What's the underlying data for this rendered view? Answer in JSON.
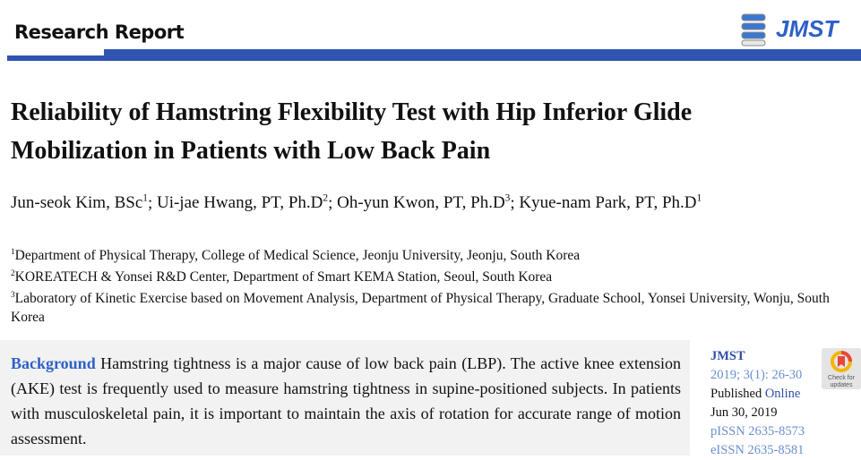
{
  "header": {
    "section_label": "Research Report",
    "journal_logo": "JMST"
  },
  "article": {
    "title_line1": "Reliability of Hamstring Flexibility Test with Hip Inferior Glide",
    "title_line2": "Mobilization in Patients with Low Back Pain",
    "authors": [
      {
        "name": "Jun-seok Kim, BSc",
        "aff": "1"
      },
      {
        "name": "Ui-jae Hwang, PT, Ph.D",
        "aff": "2"
      },
      {
        "name": "Oh-yun Kwon, PT, Ph.D",
        "aff": "3"
      },
      {
        "name": "Kyue-nam Park, PT, Ph.D",
        "aff": "1"
      }
    ],
    "affiliations": [
      {
        "num": "1",
        "text": "Department of Physical Therapy, College of Medical Science, Jeonju University, Jeonju, South Korea"
      },
      {
        "num": "2",
        "text": "KOREATECH & Yonsei R&D Center, Department of Smart KEMA Station, Seoul, South Korea"
      },
      {
        "num": "3",
        "text": "Laboratory of Kinetic Exercise based on Movement Analysis, Department of Physical Therapy, Graduate School, Yonsei University, Wonju, South Korea"
      }
    ],
    "abstract": {
      "label": "Background",
      "text": " Hamstring tightness is a major cause of low back pain (LBP). The active knee extension (AKE) test is frequently used to measure hamstring tightness in supine-positioned subjects. In patients with musculoskeletal pain, it is important to maintain the axis of rotation for accurate range of motion assessment."
    }
  },
  "sidebar": {
    "journal": "JMST",
    "citation": "2019; 3(1): 26-30",
    "published_label": "Published",
    "published_online": "Online",
    "date": "Jun 30, 2019",
    "pissn": "pISSN 2635-8573",
    "eissn": "eISSN 2635-8581",
    "check_updates": "Check for updates"
  },
  "colors": {
    "accent": "#2f55b0",
    "link": "#2f60c8"
  }
}
